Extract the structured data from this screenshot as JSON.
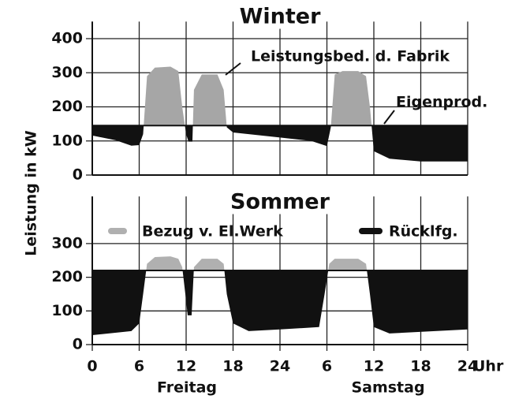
{
  "chart_data": [
    {
      "type": "area",
      "title": "Winter",
      "x": [
        0,
        3,
        5,
        6,
        6.5,
        7,
        8,
        10,
        11,
        11.5,
        12,
        12.3,
        12.8,
        13,
        14,
        16,
        16.8,
        17.2,
        18,
        24,
        28,
        30,
        30.5,
        31,
        32,
        34,
        35,
        35.5,
        36,
        38,
        42,
        48
      ],
      "values": [
        116,
        102,
        86,
        88,
        120,
        290,
        315,
        318,
        305,
        200,
        120,
        98,
        98,
        250,
        295,
        295,
        250,
        140,
        125,
        110,
        100,
        85,
        140,
        295,
        305,
        305,
        290,
        200,
        70,
        48,
        40,
        40
      ],
      "production": 145,
      "fill_above": "#a6a6a6",
      "fill_below": "#111111",
      "annotations": [
        "Leistungsbed. d. Fabrik",
        "Eigenprod."
      ],
      "xlim": [
        0,
        48
      ],
      "ylim": [
        0,
        450
      ],
      "yticks": [
        0,
        100,
        200,
        300,
        400
      ]
    },
    {
      "type": "area",
      "title": "Sommer",
      "x": [
        0,
        5,
        6,
        6.5,
        7,
        8,
        10,
        11,
        11.5,
        11.9,
        12.2,
        12.7,
        13,
        14,
        16,
        16.8,
        17.2,
        18,
        20,
        24,
        29,
        29.7,
        30.3,
        31,
        34,
        35,
        35.5,
        36,
        38,
        48
      ],
      "values": [
        28,
        40,
        63,
        150,
        240,
        260,
        262,
        255,
        230,
        150,
        87,
        87,
        230,
        255,
        255,
        240,
        150,
        63,
        40,
        45,
        52,
        150,
        240,
        255,
        255,
        240,
        150,
        52,
        33,
        45
      ],
      "production": 220,
      "fill_above": "#b0b0b0",
      "fill_below": "#111111",
      "legend": [
        {
          "name": "Bezug v. El.Werk",
          "color": "#b0b0b0"
        },
        {
          "name": "Rücklfg.",
          "color": "#111111"
        }
      ],
      "xlim": [
        0,
        48
      ],
      "ylim": [
        0,
        440
      ],
      "yticks": [
        0,
        100,
        200,
        300
      ],
      "xticks": [
        0,
        6,
        12,
        18,
        24,
        {
          "value": 30,
          "label": "6"
        },
        {
          "value": 36,
          "label": "12"
        },
        {
          "value": 42,
          "label": "18"
        },
        {
          "value": 48,
          "label": "24"
        }
      ],
      "xlabel": "Uhr",
      "day_labels": [
        "Freitag",
        "Samstag"
      ],
      "ylabel": "Leistung in kW"
    }
  ]
}
